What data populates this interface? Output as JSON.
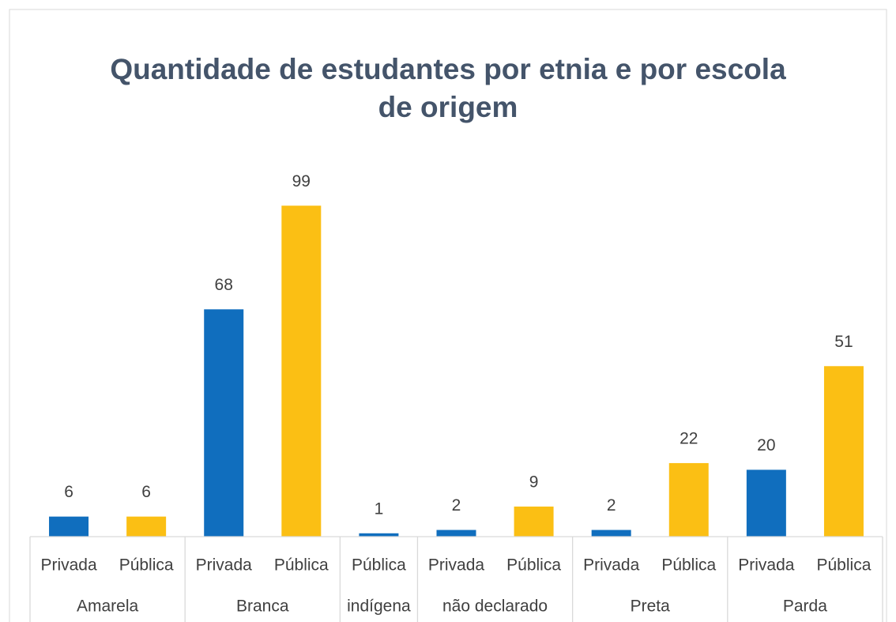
{
  "chart_data": {
    "type": "bar",
    "title": "Quantidade de estudantes por etnia e por escola de origem",
    "title_lines": [
      "Quantidade de estudantes por etnia e por escola",
      "de origem"
    ],
    "ylim": [
      0,
      100
    ],
    "groups": [
      {
        "label": "Amarela",
        "bars": [
          {
            "category": "Privada",
            "value": 6,
            "color": "#106ebe"
          },
          {
            "category": "Pública",
            "value": 6,
            "color": "#fbbf14"
          }
        ]
      },
      {
        "label": "Branca",
        "bars": [
          {
            "category": "Privada",
            "value": 68,
            "color": "#106ebe"
          },
          {
            "category": "Pública",
            "value": 99,
            "color": "#fbbf14"
          }
        ]
      },
      {
        "label": "indígena",
        "bars": [
          {
            "category": "Pública",
            "value": 1,
            "color": "#106ebe"
          }
        ]
      },
      {
        "label": "não declarado",
        "bars": [
          {
            "category": "Privada",
            "value": 2,
            "color": "#106ebe"
          },
          {
            "category": "Pública",
            "value": 9,
            "color": "#fbbf14"
          }
        ]
      },
      {
        "label": "Preta",
        "bars": [
          {
            "category": "Privada",
            "value": 2,
            "color": "#106ebe"
          },
          {
            "category": "Pública",
            "value": 22,
            "color": "#fbbf14"
          }
        ]
      },
      {
        "label": "Parda",
        "bars": [
          {
            "category": "Privada",
            "value": 20,
            "color": "#106ebe"
          },
          {
            "category": "Pública",
            "value": 51,
            "color": "#fbbf14"
          }
        ]
      }
    ]
  }
}
